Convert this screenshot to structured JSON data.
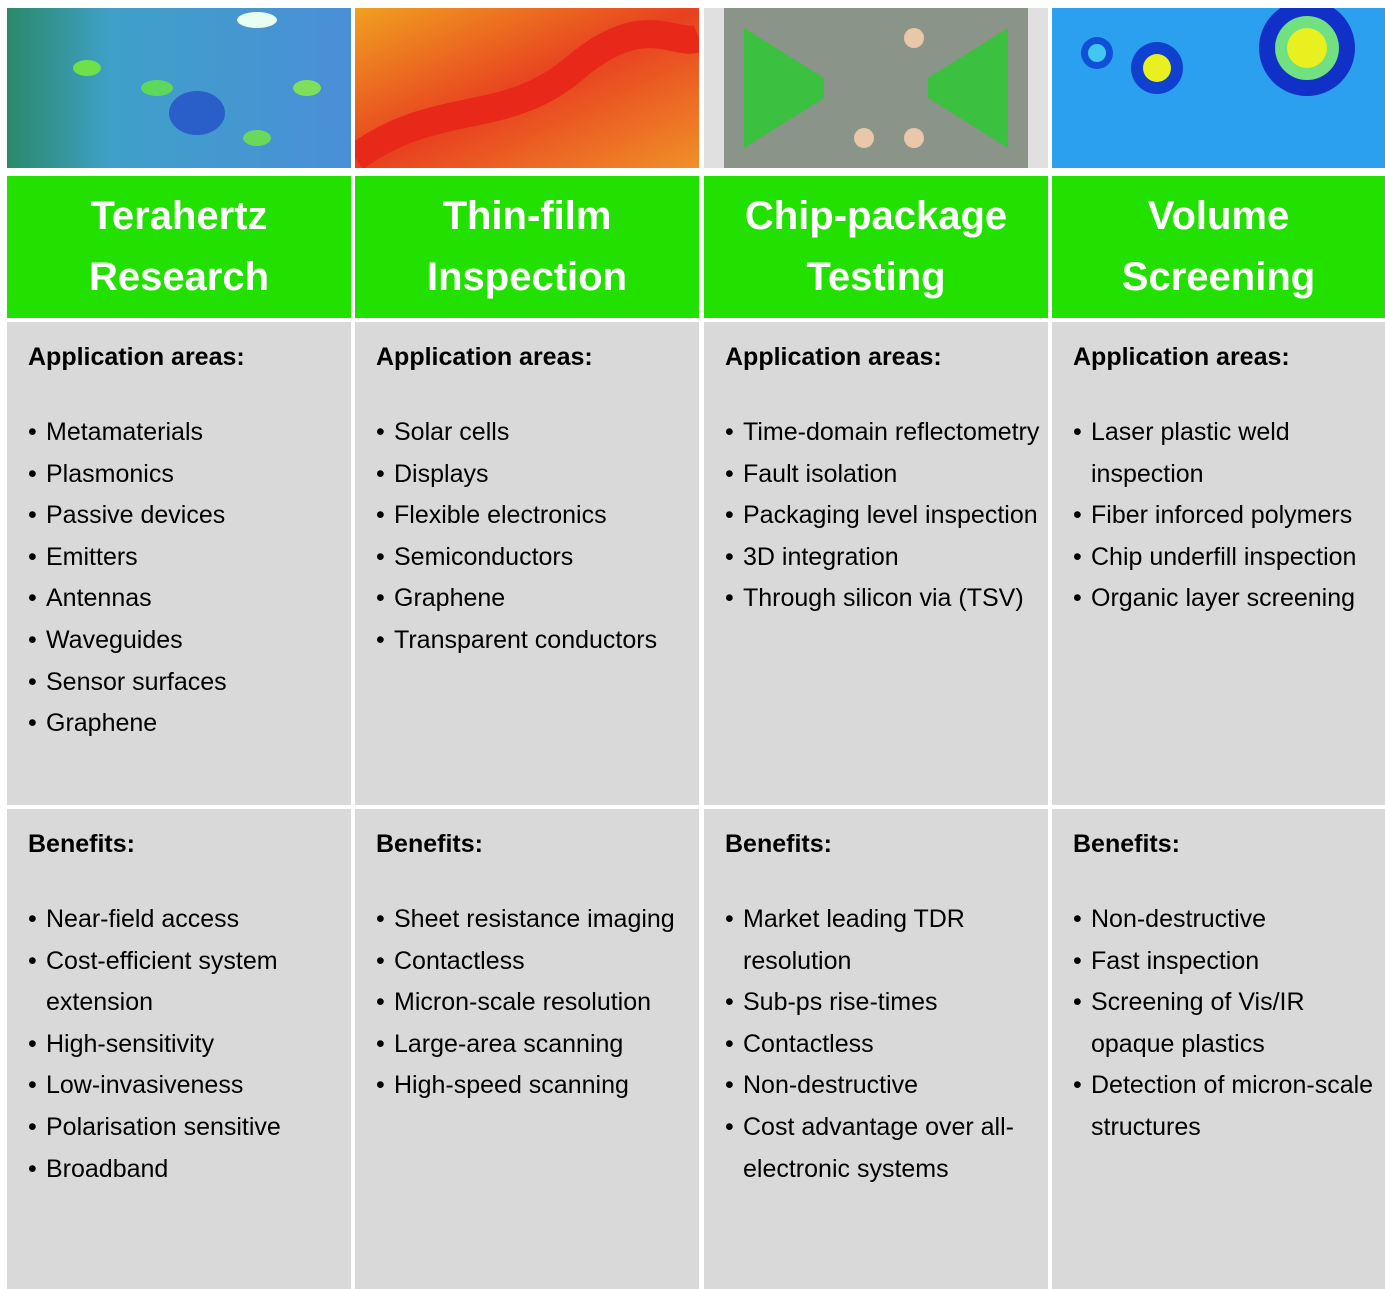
{
  "columns": [
    {
      "title": "Terahertz Research",
      "applications_heading": "Application areas:",
      "applications": [
        "Metamaterials",
        "Plasmonics",
        "Passive devices",
        "Emitters",
        "Antennas",
        "Waveguides",
        "Sensor surfaces",
        "Graphene"
      ],
      "benefits_heading": "Benefits:",
      "benefits": [
        "Near-field access",
        "Cost-efficient system extension",
        "High-sensitivity",
        "Low-invasiveness",
        "Polarisation sensitive",
        "Broadband"
      ]
    },
    {
      "title": "Thin-film Inspection",
      "applications_heading": "Application areas:",
      "applications": [
        "Solar cells",
        "Displays",
        "Flexible electronics",
        "Semiconductors",
        "Graphene",
        "Transparent conductors"
      ],
      "benefits_heading": "Benefits:",
      "benefits": [
        "Sheet resistance imaging",
        "Contactless",
        "Micron-scale resolution",
        "Large-area scanning",
        "High-speed scanning"
      ]
    },
    {
      "title": "Chip-package Testing",
      "applications_heading": "Application areas:",
      "applications": [
        "Time-domain reflectometry",
        "Fault isolation",
        "Packaging level inspection",
        "3D integration",
        "Through silicon via (TSV)"
      ],
      "benefits_heading": "Benefits:",
      "benefits": [
        "Market leading TDR resolution",
        "Sub-ps rise-times",
        "Contactless",
        "Non-destructive",
        "Cost advantage over all-electronic systems"
      ]
    },
    {
      "title": "Volume Screening",
      "applications_heading": "Application areas:",
      "applications": [
        "Laser plastic weld inspection",
        "Fiber inforced polymers",
        "Chip underfill inspection",
        "Organic layer screening"
      ],
      "benefits_heading": "Benefits:",
      "benefits": [
        "Non-destructive",
        "Fast inspection",
        "Screening of Vis/IR opaque plastics",
        "Detection of micron-scale structures"
      ]
    }
  ]
}
